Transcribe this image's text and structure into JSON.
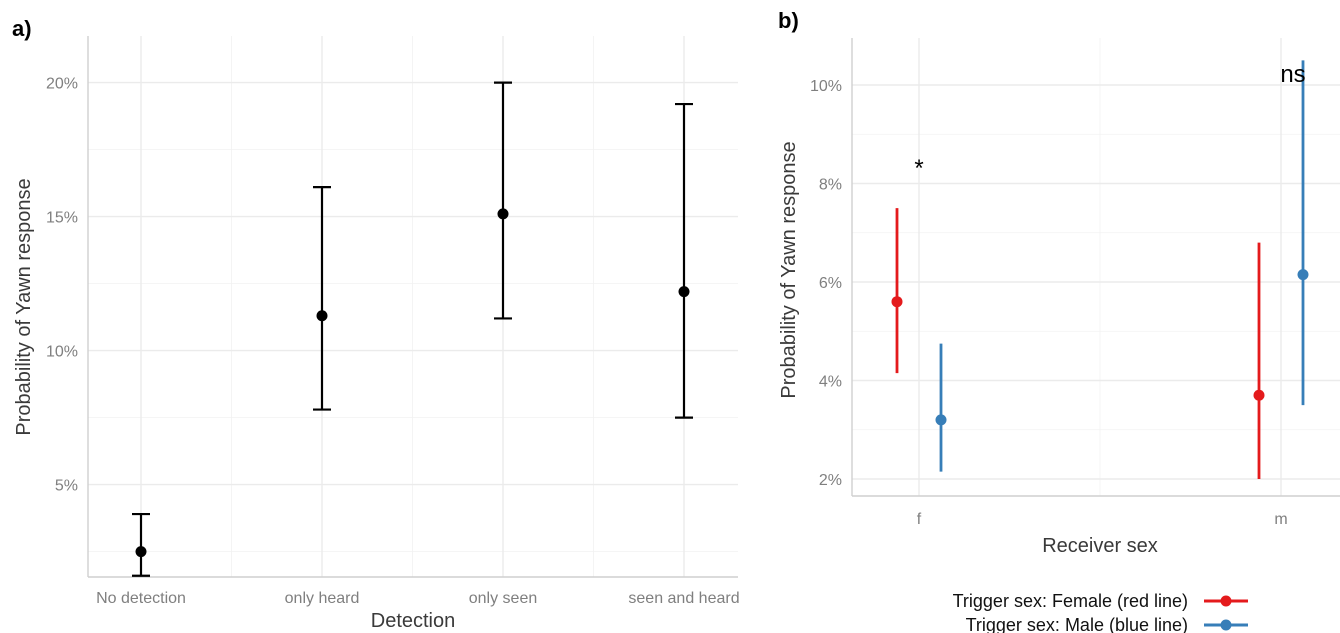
{
  "chart_data": [
    {
      "panel": "a)",
      "type": "scatter",
      "error_bars": true,
      "categories": [
        "No detection",
        "only heard",
        "only seen",
        "seen and heard"
      ],
      "values": [
        2.5,
        11.3,
        15.1,
        12.2
      ],
      "lower": [
        1.6,
        7.8,
        11.2,
        7.5
      ],
      "upper": [
        3.9,
        16.1,
        20.0,
        19.2
      ],
      "xlabel": "Detection",
      "ylabel": "Probability of Yawn response",
      "ylim": [
        0,
        21
      ],
      "yticks": [
        5,
        10,
        15,
        20
      ],
      "ytick_labels": [
        "5%",
        "10%",
        "15%",
        "20%"
      ],
      "grid": true,
      "color": "#000000"
    },
    {
      "panel": "b)",
      "type": "scatter",
      "error_bars": true,
      "categories": [
        "f",
        "m"
      ],
      "xlabel": "Receiver sex",
      "ylabel": "Probability of Yawn response",
      "ylim": [
        1.6,
        10.8
      ],
      "yticks": [
        2,
        4,
        6,
        8,
        10
      ],
      "ytick_labels": [
        "2%",
        "4%",
        "6%",
        "8%",
        "10%"
      ],
      "grid": true,
      "legend_position": "bottom",
      "series": [
        {
          "name": "Trigger sex: Female (red line)",
          "color": "#e41a1c",
          "values": [
            5.6,
            3.7
          ],
          "lower": [
            4.15,
            2.0
          ],
          "upper": [
            7.5,
            6.8
          ]
        },
        {
          "name": "Trigger sex: Male (blue line)",
          "color": "#377eb8",
          "values": [
            3.2,
            6.15
          ],
          "lower": [
            2.15,
            3.5
          ],
          "upper": [
            4.75,
            10.5
          ]
        }
      ],
      "annotations": [
        {
          "text": "*",
          "category": "f",
          "y": 8.5
        },
        {
          "text": "ns",
          "category": "m",
          "y": 10.8
        }
      ]
    }
  ]
}
